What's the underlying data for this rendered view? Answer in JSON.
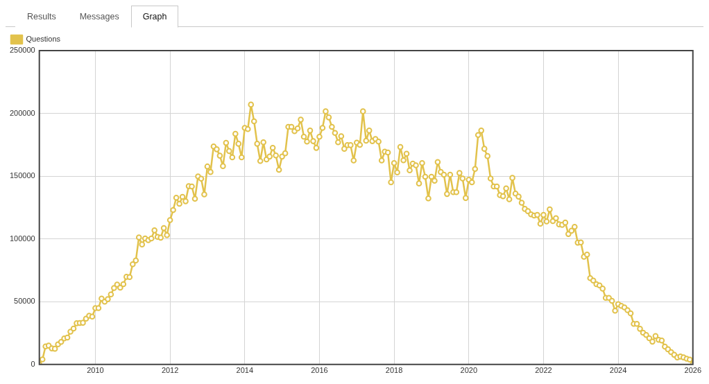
{
  "chart_data": {
    "type": "line",
    "annotations": [
      "Results",
      "Messages",
      "Graph"
    ],
    "x": [
      "2008-07",
      "2008-08",
      "2008-09",
      "2008-10",
      "2008-11",
      "2008-12",
      "2009-01",
      "2009-02",
      "2009-03",
      "2009-04",
      "2009-05",
      "2009-06",
      "2009-07",
      "2009-08",
      "2009-09",
      "2009-10",
      "2009-11",
      "2009-12",
      "2010-01",
      "2010-02",
      "2010-03",
      "2010-04",
      "2010-05",
      "2010-06",
      "2010-07",
      "2010-08",
      "2010-09",
      "2010-10",
      "2010-11",
      "2010-12",
      "2011-01",
      "2011-02",
      "2011-03",
      "2011-04",
      "2011-05",
      "2011-06",
      "2011-07",
      "2011-08",
      "2011-09",
      "2011-10",
      "2011-11",
      "2011-12",
      "2012-01",
      "2012-02",
      "2012-03",
      "2012-04",
      "2012-05",
      "2012-06",
      "2012-07",
      "2012-08",
      "2012-09",
      "2012-10",
      "2012-11",
      "2012-12",
      "2013-01",
      "2013-02",
      "2013-03",
      "2013-04",
      "2013-05",
      "2013-06",
      "2013-07",
      "2013-08",
      "2013-09",
      "2013-10",
      "2013-11",
      "2013-12",
      "2014-01",
      "2014-02",
      "2014-03",
      "2014-04",
      "2014-05",
      "2014-06",
      "2014-07",
      "2014-08",
      "2014-09",
      "2014-10",
      "2014-11",
      "2014-12",
      "2015-01",
      "2015-02",
      "2015-03",
      "2015-04",
      "2015-05",
      "2015-06",
      "2015-07",
      "2015-08",
      "2015-09",
      "2015-10",
      "2015-11",
      "2015-12",
      "2016-01",
      "2016-02",
      "2016-03",
      "2016-04",
      "2016-05",
      "2016-06",
      "2016-07",
      "2016-08",
      "2016-09",
      "2016-10",
      "2016-11",
      "2016-12",
      "2017-01",
      "2017-02",
      "2017-03",
      "2017-04",
      "2017-05",
      "2017-06",
      "2017-07",
      "2017-08",
      "2017-09",
      "2017-10",
      "2017-11",
      "2017-12",
      "2018-01",
      "2018-02",
      "2018-03",
      "2018-04",
      "2018-05",
      "2018-06",
      "2018-07",
      "2018-08",
      "2018-09",
      "2018-10",
      "2018-11",
      "2018-12",
      "2019-01",
      "2019-02",
      "2019-03",
      "2019-04",
      "2019-05",
      "2019-06",
      "2019-07",
      "2019-08",
      "2019-09",
      "2019-10",
      "2019-11",
      "2019-12",
      "2020-01",
      "2020-02",
      "2020-03",
      "2020-04",
      "2020-05",
      "2020-06",
      "2020-07",
      "2020-08",
      "2020-09",
      "2020-10",
      "2020-11",
      "2020-12",
      "2021-01",
      "2021-02",
      "2021-03",
      "2021-04",
      "2021-05",
      "2021-06",
      "2021-07",
      "2021-08",
      "2021-09",
      "2021-10",
      "2021-11",
      "2021-12",
      "2022-01",
      "2022-02",
      "2022-03",
      "2022-04",
      "2022-05",
      "2022-06",
      "2022-07",
      "2022-08",
      "2022-09",
      "2022-10",
      "2022-11",
      "2022-12",
      "2023-01",
      "2023-02",
      "2023-03",
      "2023-04",
      "2023-05",
      "2023-06",
      "2023-07",
      "2023-08",
      "2023-09",
      "2023-10",
      "2023-11",
      "2023-12",
      "2024-01",
      "2024-02",
      "2024-03",
      "2024-04",
      "2024-05",
      "2024-06",
      "2024-07",
      "2024-08",
      "2024-09",
      "2024-10",
      "2024-11",
      "2024-12",
      "2025-01",
      "2025-02",
      "2025-03",
      "2025-04",
      "2025-05",
      "2025-06",
      "2025-07",
      "2025-08",
      "2025-09",
      "2025-10",
      "2025-11",
      "2025-12",
      "2026-01"
    ],
    "series": [
      {
        "name": "Questions",
        "color": "#e2c24c",
        "values": [
          0,
          4000,
          14400,
          15000,
          12800,
          12500,
          16000,
          18000,
          20700,
          21400,
          26100,
          28600,
          32800,
          33000,
          33200,
          36500,
          38800,
          38100,
          44900,
          44900,
          52500,
          50000,
          52000,
          55800,
          60900,
          63700,
          61200,
          63900,
          69800,
          69600,
          79800,
          82800,
          101200,
          95600,
          100400,
          99000,
          100400,
          106800,
          101600,
          101000,
          108600,
          103000,
          115000,
          123000,
          132800,
          128000,
          133500,
          130000,
          142000,
          141800,
          132000,
          149800,
          148000,
          135400,
          157700,
          153300,
          173700,
          171400,
          166300,
          158000,
          176500,
          170000,
          165000,
          183700,
          175800,
          165000,
          188400,
          187500,
          207000,
          193700,
          175800,
          162100,
          177000,
          163300,
          165600,
          172600,
          166500,
          155000,
          165600,
          168200,
          189300,
          189300,
          185800,
          188000,
          195000,
          181400,
          177500,
          186300,
          177900,
          172500,
          181400,
          188400,
          201600,
          196800,
          189300,
          184400,
          177000,
          181800,
          171800,
          174700,
          174700,
          162500,
          176700,
          174900,
          201600,
          178200,
          186300,
          177900,
          179600,
          177500,
          162500,
          169500,
          168800,
          145100,
          160400,
          153000,
          173200,
          162600,
          167900,
          154600,
          160000,
          158600,
          144200,
          160400,
          149500,
          132300,
          149500,
          146300,
          161200,
          153300,
          151200,
          135800,
          151200,
          137200,
          137200,
          152500,
          148100,
          132600,
          147200,
          145100,
          155700,
          182800,
          186300,
          171800,
          166000,
          148100,
          141800,
          141800,
          134900,
          134000,
          140200,
          131600,
          148600,
          136100,
          133700,
          128800,
          123900,
          122100,
          119600,
          118600,
          119100,
          112100,
          119100,
          113900,
          123500,
          114200,
          116500,
          111600,
          111200,
          113000,
          103900,
          106500,
          109600,
          97000,
          97200,
          85800,
          87500,
          68800,
          66800,
          63900,
          63000,
          60400,
          53000,
          53000,
          50700,
          42800,
          48100,
          46700,
          45400,
          43200,
          40700,
          32300,
          32300,
          28400,
          25300,
          23500,
          20900,
          18200,
          22600,
          19600,
          19100,
          14200,
          12100,
          9800,
          7700,
          5600,
          6300,
          5600,
          4600,
          3900,
          200
        ]
      }
    ],
    "xlim": [
      "2008-07",
      "2026-01"
    ],
    "xticks": [
      "2010",
      "2012",
      "2014",
      "2016",
      "2018",
      "2020",
      "2022",
      "2024",
      "2026"
    ],
    "ylim": [
      0,
      250000
    ],
    "yticks": [
      0,
      50000,
      100000,
      150000,
      200000,
      250000
    ],
    "grid": true,
    "legend": "top left",
    "marker": "circle",
    "line_style": "solid"
  }
}
